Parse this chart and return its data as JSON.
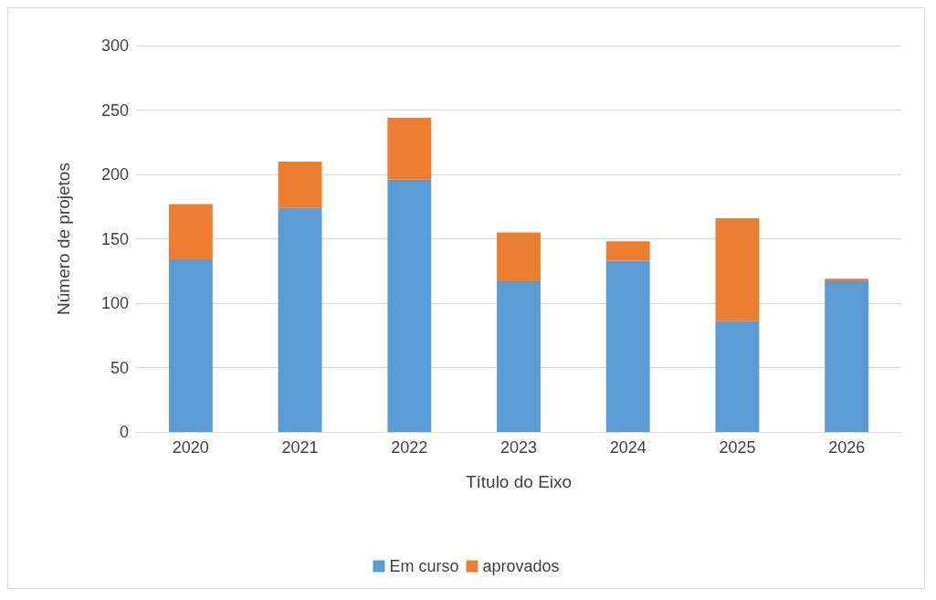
{
  "chart_data": {
    "type": "bar",
    "stacked": true,
    "xlabel": "Título do Eixo",
    "ylabel": "Número de projetos",
    "categories": [
      "2020",
      "2021",
      "2022",
      "2023",
      "2024",
      "2025",
      "2026"
    ],
    "series": [
      {
        "name": "Em curso",
        "color": "#5b9bd5",
        "values": [
          134,
          174,
          196,
          117,
          133,
          86,
          117
        ]
      },
      {
        "name": "aprovados",
        "color": "#ed7d31",
        "values": [
          43,
          36,
          48,
          38,
          15,
          80,
          2
        ]
      }
    ],
    "ylim": [
      0,
      300
    ],
    "yticks": [
      0,
      50,
      100,
      150,
      200,
      250,
      300
    ],
    "grid": "y",
    "legend": "bottom"
  }
}
